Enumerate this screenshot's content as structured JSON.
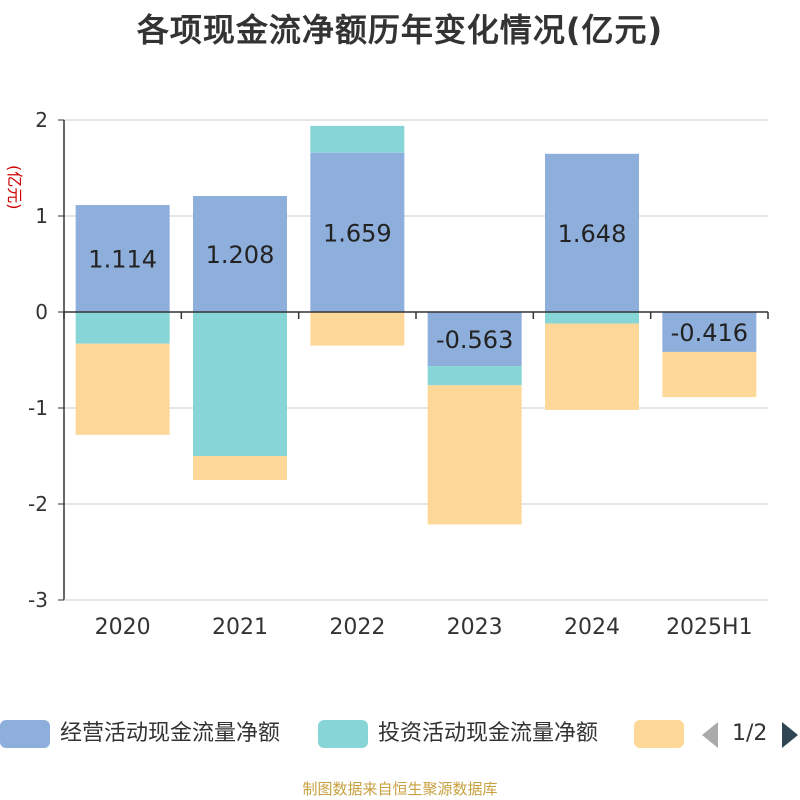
{
  "title": "各项现金流净额历年变化情况(亿元)",
  "source_text": "制图数据来自恒生聚源数据库",
  "legend_page": "1/2",
  "chart_data": {
    "type": "bar",
    "stacked": true,
    "title": "各项现金流净额历年变化情况(亿元)",
    "ylabel": "(亿元)",
    "ylim": [
      -3,
      2
    ],
    "yticks": [
      2,
      1,
      0,
      -1,
      -2,
      -3
    ],
    "grid": true,
    "legend_position": "bottom",
    "categories": [
      "2020",
      "2021",
      "2022",
      "2023",
      "2024",
      "2025H1"
    ],
    "series": [
      {
        "name": "经营活动现金流量净额",
        "color": "#8eaedb",
        "values": [
          1.114,
          1.208,
          1.659,
          -0.563,
          1.648,
          -0.416
        ],
        "labels": [
          "1.114",
          "1.208",
          "1.659",
          "-0.563",
          "1.648",
          "-0.416"
        ]
      },
      {
        "name": "投资活动现金流量净额",
        "color": "#88d5d8",
        "values": [
          -0.33,
          -1.5,
          0.28,
          -0.2,
          -0.12,
          0.0
        ],
        "labels": []
      },
      {
        "name": "",
        "color": "#fdd899",
        "values": [
          -0.95,
          -0.25,
          -0.35,
          -1.45,
          -0.9,
          -0.47
        ],
        "labels": []
      }
    ]
  }
}
